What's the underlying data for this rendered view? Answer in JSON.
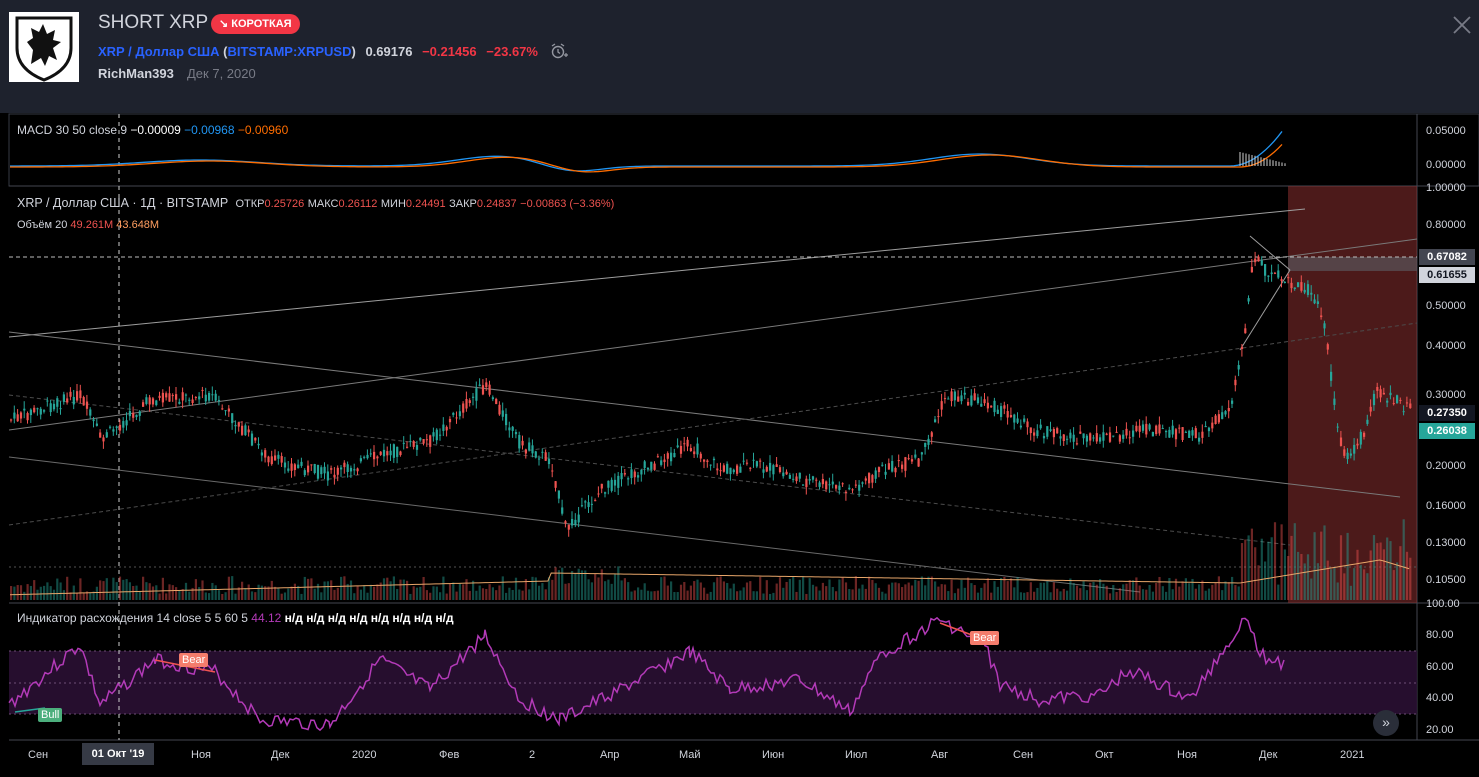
{
  "header": {
    "title": "SHORT XRP",
    "badge": "КОРОТКАЯ",
    "symbol_name": "XRP / Доллар США",
    "symbol_code": "BITSTAMP:XRPUSD",
    "last_price": "0.69176",
    "change": "−0.21456",
    "change_pct": "−23.67%",
    "author": "RichMan393",
    "date": "Дек 7, 2020"
  },
  "macd": {
    "label": "MACD 30 50 close 9",
    "v1": "−0.00009",
    "v2": "−0.00968",
    "v3": "−0.00960",
    "axis": [
      "0.05000",
      "0.00000"
    ]
  },
  "main": {
    "title": "XRP / Доллар США · 1Д · BITSTAMP",
    "open_label": "ОТКР",
    "open": "0.25726",
    "high_label": "МАКС",
    "high": "0.26112",
    "low_label": "МИН",
    "low": "0.24491",
    "close_label": "ЗАКР",
    "close": "0.24837",
    "change": "−0.00863 (−3.36%)",
    "volume_label": "Объём 20",
    "volume_value": "49.261M",
    "volume_ma": "43.648M",
    "axis": [
      "1.00000",
      "0.80000",
      "0.50000",
      "0.40000",
      "0.30000",
      "0.20000",
      "0.16000",
      "0.13000",
      "0.10500"
    ],
    "tag_a": "0.67082",
    "tag_b": "0.61655",
    "tag_c": "0.27350",
    "tag_d": "0.26038"
  },
  "oscillator": {
    "label": "Индикатор расхождения 14 close 5 5 60 5",
    "value": "44.12",
    "na": "н/д н/д н/д н/д н/д н/д н/д н/д",
    "axis": [
      "100.00",
      "80.00",
      "60.00",
      "40.00",
      "20.00"
    ],
    "bull": "Bull",
    "bear": "Bear"
  },
  "time_axis": {
    "labels": [
      "Сен",
      "Ноя",
      "Дек",
      "2020",
      "Фев",
      "2",
      "Апр",
      "Май",
      "Июн",
      "Июл",
      "Авг",
      "Сен",
      "Окт",
      "Ноя",
      "Дек",
      "2021"
    ],
    "cursor": "01 Окт '19"
  },
  "colors": {
    "background": "#000000",
    "header": "#1e222d",
    "up": "#26a69a",
    "down": "#ef5350",
    "short_zone": "#8b2f2f",
    "oscillator": "#b33ab8",
    "accent": "#2962ff"
  }
}
